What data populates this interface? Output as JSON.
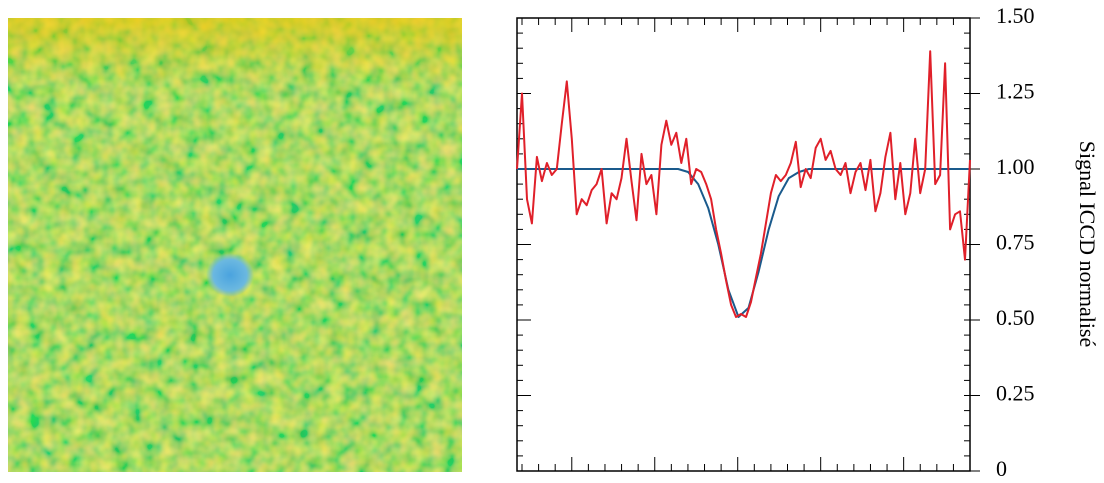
{
  "chart_data": {
    "type": "line",
    "y_axis_label": "Signal ICCD normalisé",
    "ylim": [
      0,
      1.5
    ],
    "yticks": [
      0,
      0.25,
      {
        "value": 0.5,
        "label": "0.50"
      },
      0.75,
      {
        "value": 1,
        "label": "1.00"
      },
      1.25,
      {
        "value": 1.5,
        "label": "1.50"
      }
    ],
    "series": [
      {
        "color": "#e0202a",
        "values": [
          1.0,
          1.25,
          0.9,
          0.82,
          1.04,
          0.96,
          1.02,
          0.98,
          1.0,
          1.15,
          1.29,
          1.1,
          0.85,
          0.9,
          0.88,
          0.93,
          0.95,
          1.0,
          0.82,
          0.92,
          0.9,
          0.97,
          1.1,
          0.96,
          0.83,
          1.05,
          0.95,
          0.98,
          0.85,
          1.08,
          1.16,
          1.08,
          1.12,
          1.02,
          1.1,
          0.95,
          1.0,
          0.99,
          0.95,
          0.9,
          0.8,
          0.72,
          0.63,
          0.55,
          0.51,
          0.52,
          0.51,
          0.56,
          0.64,
          0.72,
          0.82,
          0.92,
          0.98,
          0.96,
          0.98,
          1.02,
          1.09,
          0.94,
          1.0,
          0.97,
          1.07,
          1.1,
          1.03,
          1.06,
          1.0,
          0.98,
          1.02,
          0.92,
          0.99,
          1.02,
          0.93,
          1.03,
          0.86,
          0.92,
          1.04,
          1.12,
          0.9,
          1.02,
          0.85,
          0.92,
          1.1,
          0.92,
          1.0,
          1.39,
          0.95,
          0.98,
          1.35,
          0.8,
          0.85,
          0.86,
          0.7,
          1.03
        ]
      },
      {
        "color": "#1a5a8c",
        "values": [
          1,
          1,
          1,
          1,
          1,
          1,
          1,
          1,
          1,
          1,
          1,
          1,
          1,
          1,
          1,
          1,
          1,
          0.99,
          0.95,
          0.87,
          0.75,
          0.6,
          0.51,
          0.54,
          0.66,
          0.8,
          0.91,
          0.97,
          0.99,
          1,
          1,
          1,
          1,
          1,
          1,
          1,
          1,
          1,
          1,
          1,
          1,
          1,
          1,
          1,
          1,
          1
        ]
      }
    ]
  }
}
